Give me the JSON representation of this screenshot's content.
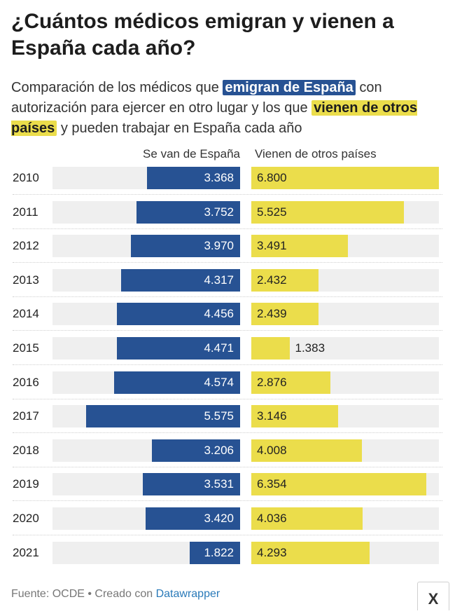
{
  "title": "¿Cuántos médicos emigran y vienen a España cada año?",
  "subtitle": {
    "part1": "Comparación de los médicos que ",
    "highlight_blue": "emigran de España",
    "part2": " con autorización para ejercer en otro lugar y los que ",
    "highlight_yellow": "vienen de otros países",
    "part3": " y pueden trabajar en España cada año"
  },
  "footer": {
    "source": "Fuente: OCDE • Creado con ",
    "link": "Datawrapper"
  },
  "close_label": "X",
  "colors": {
    "emigrate": "#275293",
    "immigrate": "#ebdd4b",
    "track": "#efefef"
  },
  "chart_data": {
    "type": "bar",
    "categories": [
      "2010",
      "2011",
      "2012",
      "2013",
      "2014",
      "2015",
      "2016",
      "2017",
      "2018",
      "2019",
      "2020",
      "2021"
    ],
    "series": [
      {
        "name": "Se van de España",
        "values": [
          3368,
          3752,
          3970,
          4317,
          4456,
          4471,
          4574,
          5575,
          3206,
          3531,
          3420,
          1822
        ],
        "labels": [
          "3.368",
          "3.752",
          "3.970",
          "4.317",
          "4.456",
          "4.471",
          "4.574",
          "5.575",
          "3.206",
          "3.531",
          "3.420",
          "1.822"
        ]
      },
      {
        "name": "Vienen de otros países",
        "values": [
          6800,
          5525,
          3491,
          2432,
          2439,
          1383,
          2876,
          3146,
          4008,
          6354,
          4036,
          4293
        ],
        "labels": [
          "6.800",
          "5.525",
          "3.491",
          "2.432",
          "2.439",
          "1.383",
          "2.876",
          "3.146",
          "4.008",
          "6.354",
          "4.036",
          "4.293"
        ]
      }
    ],
    "xlim": [
      0,
      6800
    ]
  }
}
